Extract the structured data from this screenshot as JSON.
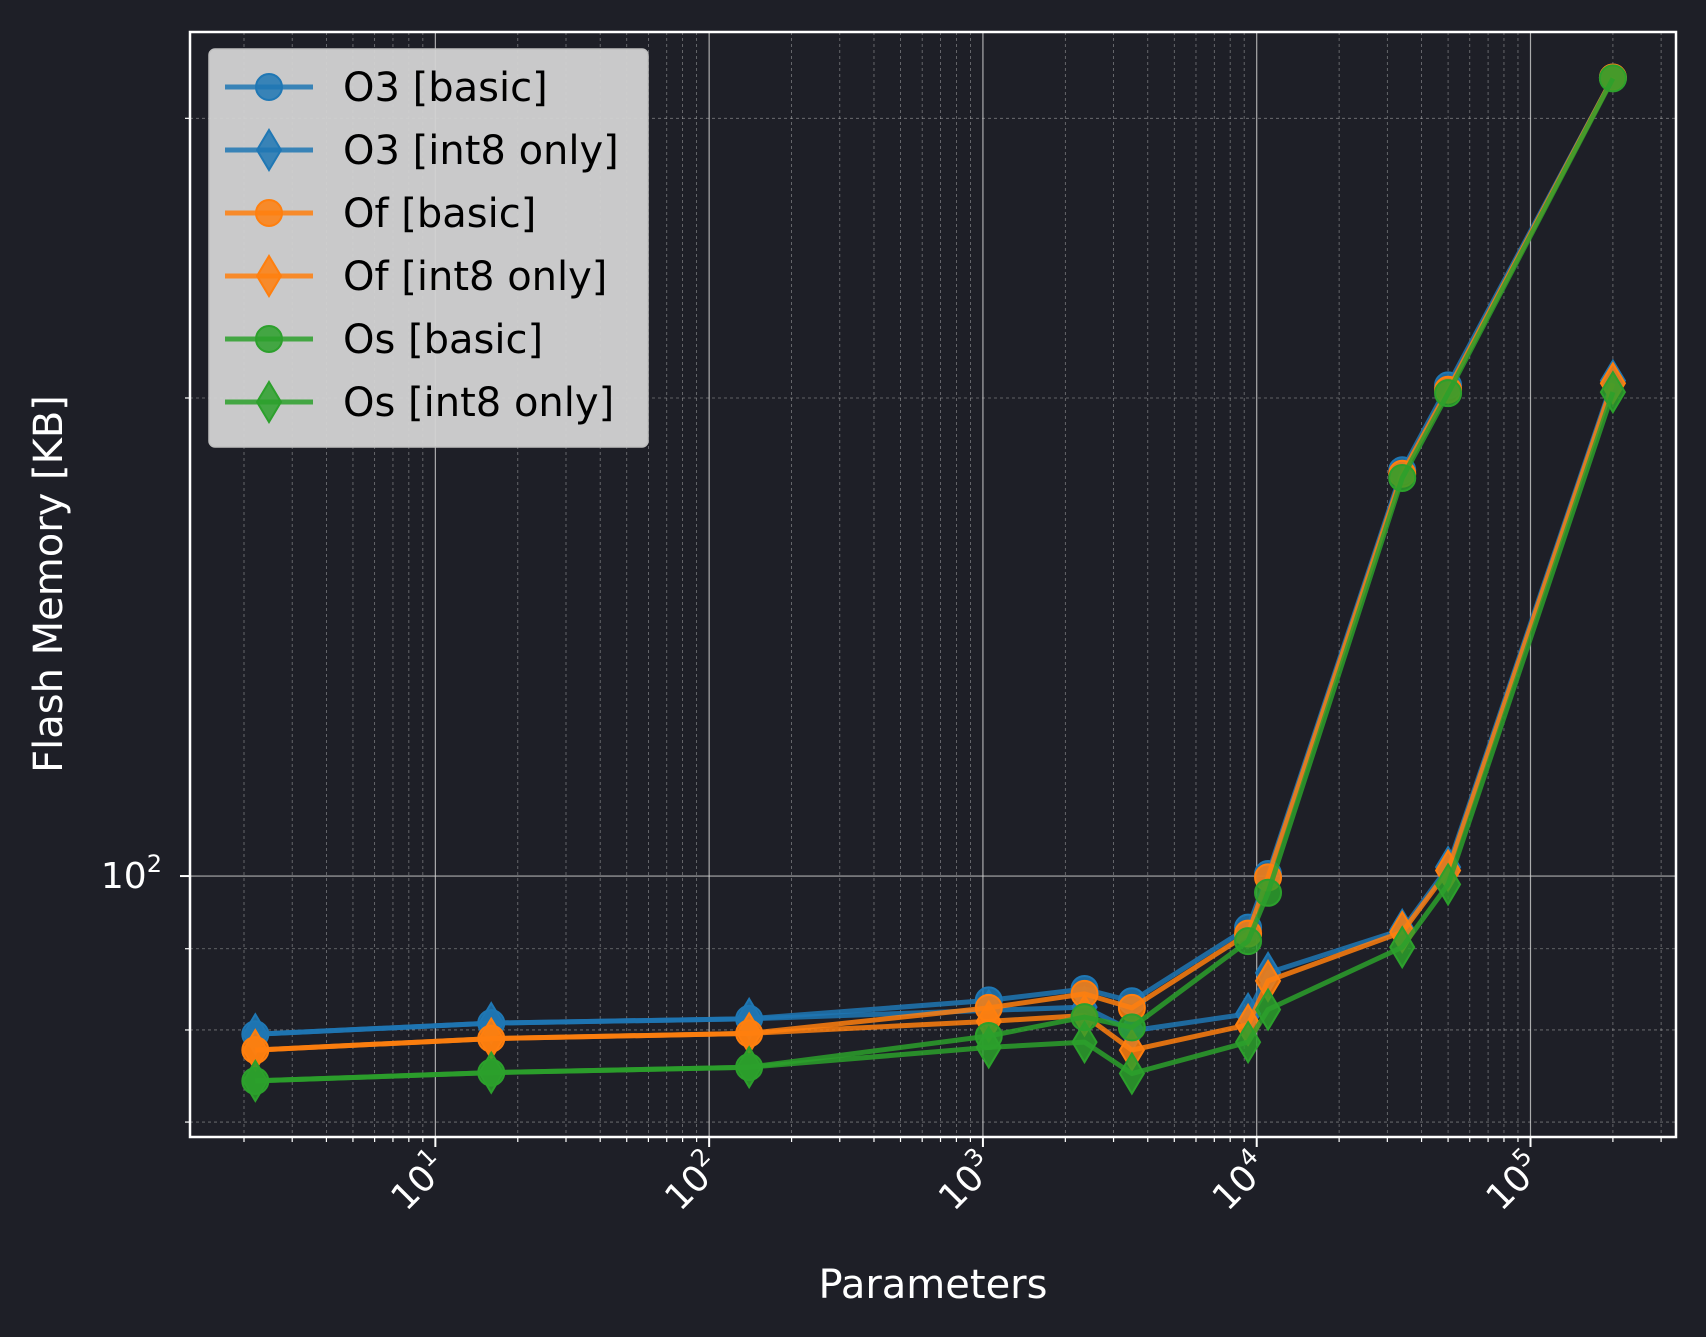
{
  "chart_data": {
    "type": "line",
    "xlabel": "Parameters",
    "ylabel": "Flash Memory [KB]",
    "x_scale": "log",
    "y_scale": "log",
    "xlim": [
      1.27,
      340000
    ],
    "ylim": [
      68.5,
      340
    ],
    "x_ticks": [
      {
        "value": 10,
        "base": "10",
        "exp": "1"
      },
      {
        "value": 100,
        "base": "10",
        "exp": "2"
      },
      {
        "value": 1000,
        "base": "10",
        "exp": "3"
      },
      {
        "value": 10000,
        "base": "10",
        "exp": "4"
      },
      {
        "value": 100000,
        "base": "10",
        "exp": "5"
      }
    ],
    "y_ticks": [
      {
        "value": 100,
        "base": "10",
        "exp": "2"
      }
    ],
    "grid": true,
    "legend_position": "top-left",
    "colors": {
      "background": "#1e1f27",
      "legend_bg": "#d3d3d3",
      "O3": "#1f77b4",
      "Of": "#ff7f0e",
      "Os": "#2ca02c"
    },
    "x": [
      2.2,
      16,
      140,
      1050,
      2350,
      3500,
      9300,
      11000,
      34000,
      50000,
      200000
    ],
    "series": [
      {
        "name": "O3 [basic]",
        "color": "#1f77b4",
        "marker": "circle",
        "values": [
          79.5,
          80.8,
          81.3,
          83.5,
          84.9,
          83.4,
          92.8,
          100.3,
          180.1,
          203.7,
          318.3
        ]
      },
      {
        "name": "O3 [int8 only]",
        "color": "#1f77b4",
        "marker": "diamond",
        "values": [
          79.5,
          80.8,
          81.3,
          82.3,
          82.7,
          79.9,
          81.9,
          86.9,
          92.5,
          101.3,
          205.1
        ]
      },
      {
        "name": "Of [basic]",
        "color": "#ff7f0e",
        "marker": "circle",
        "values": [
          77.7,
          79.0,
          79.6,
          82.6,
          84.3,
          82.6,
          92.0,
          99.8,
          179.2,
          202.4,
          318.3
        ]
      },
      {
        "name": "Of [int8 only]",
        "color": "#ff7f0e",
        "marker": "diamond",
        "values": [
          77.7,
          79.0,
          79.6,
          81.0,
          81.7,
          77.7,
          80.6,
          85.9,
          92.2,
          100.8,
          204.3
        ]
      },
      {
        "name": "Os [basic]",
        "color": "#2ca02c",
        "marker": "circle",
        "values": [
          74.3,
          75.2,
          75.8,
          79.3,
          81.5,
          80.3,
          91.0,
          97.6,
          178.1,
          201.4,
          317.9
        ]
      },
      {
        "name": "Os [int8 only]",
        "color": "#2ca02c",
        "marker": "diamond",
        "values": [
          74.3,
          75.2,
          75.8,
          78.0,
          78.6,
          75.1,
          78.6,
          82.4,
          90.2,
          98.8,
          201.7
        ]
      }
    ]
  }
}
